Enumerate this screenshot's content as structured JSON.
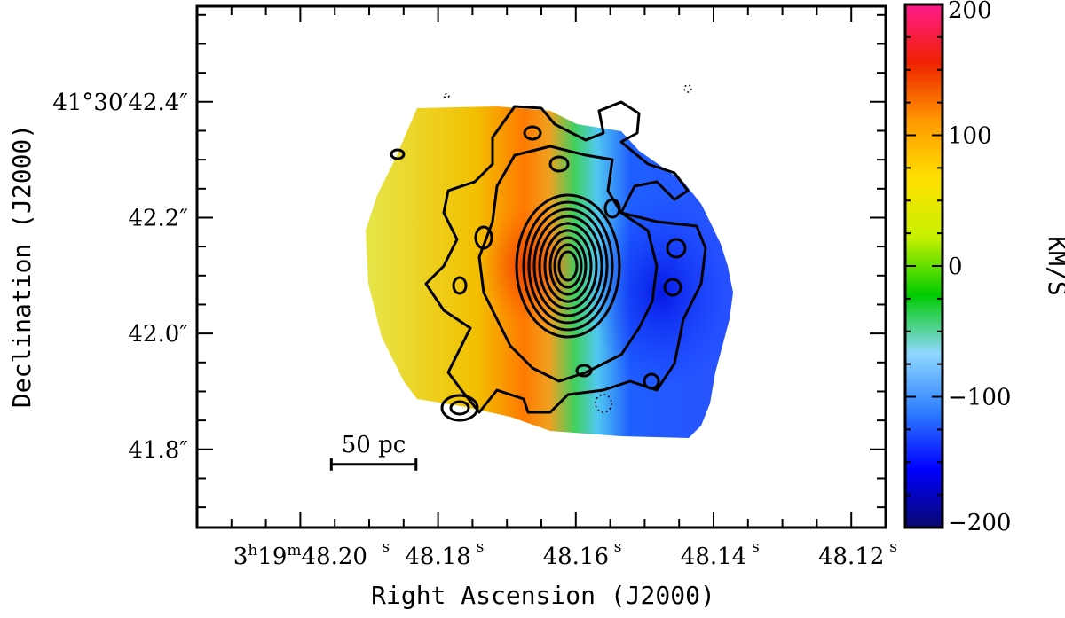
{
  "chart_data": {
    "type": "heatmap",
    "title": "",
    "xlabel": "Right Ascension (J2000)",
    "ylabel": "Declination (J2000)",
    "x_ticks": [
      {
        "ra_s": 48.2,
        "h": "3",
        "m": "19",
        "s": "48.20",
        "label_main": "3h19m48.20s"
      },
      {
        "ra_s": 48.18,
        "label": "48.18"
      },
      {
        "ra_s": 48.16,
        "label": "48.16"
      },
      {
        "ra_s": 48.14,
        "label": "48.14"
      },
      {
        "ra_s": 48.12,
        "label": "48.12"
      }
    ],
    "x_tick_sup": {
      "h": "h",
      "m": "m",
      "s": "s"
    },
    "y_ticks": [
      {
        "dec_arcsec": 42.4,
        "label": "41°30′42.4″"
      },
      {
        "dec_arcsec": 42.2,
        "label": "42.2″"
      },
      {
        "dec_arcsec": 42.0,
        "label": "42.0″"
      },
      {
        "dec_arcsec": 41.8,
        "label": "41.8″"
      }
    ],
    "xlim": [
      48.215,
      48.115
    ],
    "ylim": [
      41.665,
      42.565
    ],
    "scalebar": {
      "label": "50 pc",
      "ra_start": 48.1955,
      "ra_end": 48.1832,
      "dec": 41.774
    },
    "colorbar": {
      "label": "KM/S",
      "range": [
        -200,
        200
      ],
      "ticks": [
        200,
        100,
        0,
        -100,
        -200
      ],
      "tick_labels": [
        "200",
        "100",
        "0",
        "−100",
        "−200"
      ],
      "colormap": [
        "#08086e",
        "#0000ff",
        "#2f7fff",
        "#8fd8ff",
        "#00cc00",
        "#c8f000",
        "#ffe000",
        "#ff9900",
        "#ee2200",
        "#ff1a8c"
      ]
    },
    "velocity_field": {
      "center": {
        "ra_s": 48.163,
        "dec_arcsec": 42.11
      },
      "gradient": "redshifted (+150 km/s) to the east, blueshifted (−150 km/s) to the west"
    },
    "contour_levels_count": 10
  }
}
